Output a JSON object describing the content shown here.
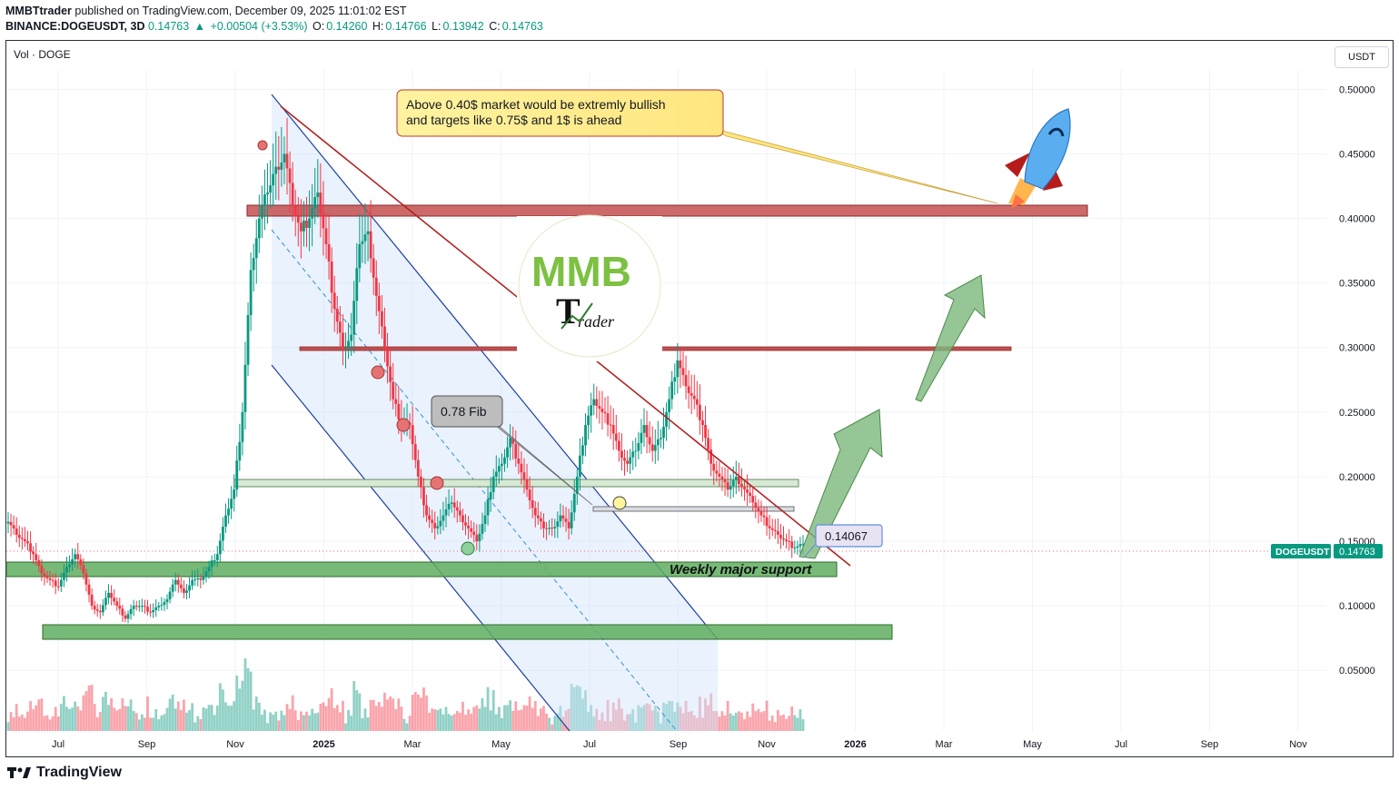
{
  "header": {
    "publisher": "MMBTtrader",
    "published_text": "published on TradingView.com, December 09, 2025 11:01:02 EST",
    "symbol": "BINANCE:DOGEUSDT, 3D",
    "last": "0.14763",
    "change": "+0.00504 (+3.53%)",
    "o_label": "O:",
    "o_value": "0.14260",
    "h_label": "H:",
    "h_value": "0.14766",
    "l_label": "L:",
    "l_value": "0.13942",
    "c_label": "C:",
    "c_value": "0.14763"
  },
  "vol_label": "Vol · DOGE",
  "currency_button": "USDT",
  "footer": {
    "brand": "TradingView"
  },
  "annotations": {
    "callout_line1": "Above 0.40$ market would be extremly bullish",
    "callout_line2": "and targets like 0.75$ and 1$ is ahead",
    "fib_label": "0.78 Fib",
    "price_box": "0.14067",
    "support_label": "Weekly major support",
    "logo_letters": "MMB",
    "logo_sub": "rader",
    "logo_T": "T"
  },
  "price_tag": {
    "symbol": "DOGEUSDT",
    "value": "0.14763"
  },
  "colors": {
    "up": "#089981",
    "down": "#f23645",
    "resistance": "#c44f4f",
    "support": "#4caf50",
    "channel": "#1e3fa0",
    "trendline": "#b22222"
  },
  "chart_data": {
    "type": "candlestick",
    "title": "",
    "x_ticks": [
      "Jul",
      "Sep",
      "Nov",
      "2025",
      "Mar",
      "May",
      "Jul",
      "Sep",
      "Nov",
      "2026",
      "Mar",
      "May",
      "Jul",
      "Sep",
      "Nov"
    ],
    "year_ticks": [
      "2025",
      "2026"
    ],
    "y_ticks": [
      "0.50000",
      "0.45000",
      "0.40000",
      "0.35000",
      "0.30000",
      "0.25000",
      "0.20000",
      "0.15000",
      "0.10000",
      "0.05000"
    ],
    "ylim": [
      0.015,
      0.515
    ],
    "last_price": 0.14763,
    "key_levels": [
      {
        "name": "major resistance",
        "value": 0.405
      },
      {
        "name": "resistance",
        "value": 0.302
      },
      {
        "name": "support",
        "value": 0.2
      },
      {
        "name": "fib level",
        "value": 0.18
      },
      {
        "name": "weekly major support",
        "value": 0.13
      },
      {
        "name": "lower support",
        "value": 0.085
      }
    ],
    "close_series_approx": [
      0.165,
      0.155,
      0.15,
      0.14,
      0.125,
      0.12,
      0.115,
      0.13,
      0.14,
      0.125,
      0.1,
      0.095,
      0.11,
      0.1,
      0.09,
      0.1,
      0.1,
      0.095,
      0.1,
      0.105,
      0.12,
      0.11,
      0.12,
      0.12,
      0.13,
      0.14,
      0.17,
      0.19,
      0.25,
      0.36,
      0.4,
      0.42,
      0.44,
      0.45,
      0.41,
      0.39,
      0.4,
      0.42,
      0.38,
      0.33,
      0.3,
      0.31,
      0.38,
      0.39,
      0.34,
      0.3,
      0.26,
      0.24,
      0.24,
      0.2,
      0.17,
      0.16,
      0.17,
      0.18,
      0.17,
      0.16,
      0.15,
      0.17,
      0.2,
      0.21,
      0.23,
      0.21,
      0.19,
      0.17,
      0.16,
      0.16,
      0.17,
      0.16,
      0.2,
      0.24,
      0.26,
      0.25,
      0.24,
      0.22,
      0.21,
      0.22,
      0.24,
      0.22,
      0.23,
      0.26,
      0.29,
      0.27,
      0.26,
      0.24,
      0.21,
      0.2,
      0.19,
      0.2,
      0.19,
      0.18,
      0.17,
      0.16,
      0.155,
      0.15,
      0.145,
      0.148
    ]
  }
}
